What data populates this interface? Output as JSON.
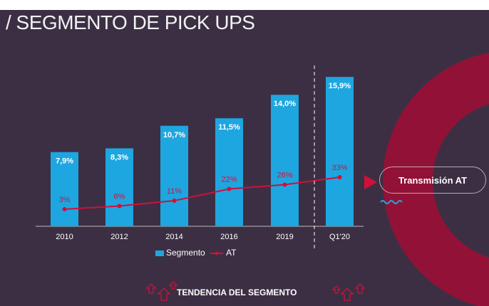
{
  "title": "/ SEGMENTO DE PICK UPS",
  "callout": "Transmisión AT",
  "footer": "TENDENCIA DEL SEGMENTO",
  "colors": {
    "bar": "#1ea6e0",
    "line": "#d0103a",
    "background": "#3c2f44",
    "accent": "#b5103a"
  },
  "chart_data": {
    "type": "bar",
    "categories": [
      "2010",
      "2012",
      "2014",
      "2016",
      "2019",
      "Q1'20"
    ],
    "series": [
      {
        "name": "Segmento",
        "type": "bar",
        "values": [
          7.9,
          8.3,
          10.7,
          11.5,
          14.0,
          15.9
        ],
        "labels": [
          "7,9%",
          "8,3%",
          "10,7%",
          "11,5%",
          "14,0%",
          "15,9%"
        ]
      },
      {
        "name": "AT",
        "type": "line",
        "values": [
          3,
          6,
          11,
          22,
          26,
          33
        ],
        "labels": [
          "3%",
          "6%",
          "11%",
          "22%",
          "26%",
          "33%"
        ]
      }
    ],
    "legend": "bottom"
  }
}
